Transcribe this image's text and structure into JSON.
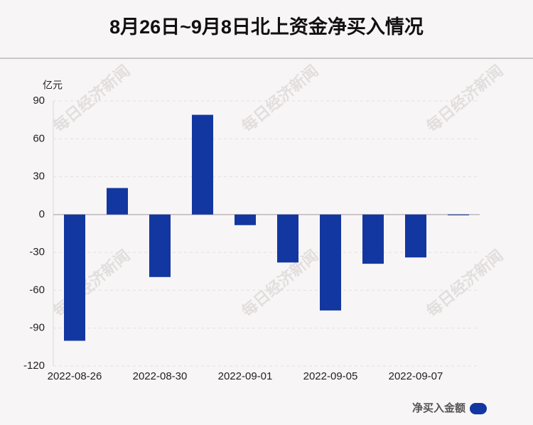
{
  "chart_data": {
    "type": "bar",
    "title": "8月26日~9月8日北上资金净买入情况",
    "y_unit": "亿元",
    "watermark": "每日经济新闻",
    "categories": [
      "2022-08-26",
      null,
      "2022-08-30",
      null,
      "2022-09-01",
      null,
      "2022-09-05",
      null,
      "2022-09-07",
      null
    ],
    "series": [
      {
        "name": "净买入金额",
        "color": "#1237a0",
        "values": [
          -100,
          21,
          -49.5,
          79,
          -8.4,
          -38,
          -76,
          -39,
          -34,
          -0.6
        ]
      }
    ],
    "ylim": [
      -120,
      90
    ],
    "yticks": [
      -120,
      -90,
      -60,
      -30,
      0,
      30,
      60,
      90
    ],
    "grid": true,
    "legend": "bottom-right"
  }
}
